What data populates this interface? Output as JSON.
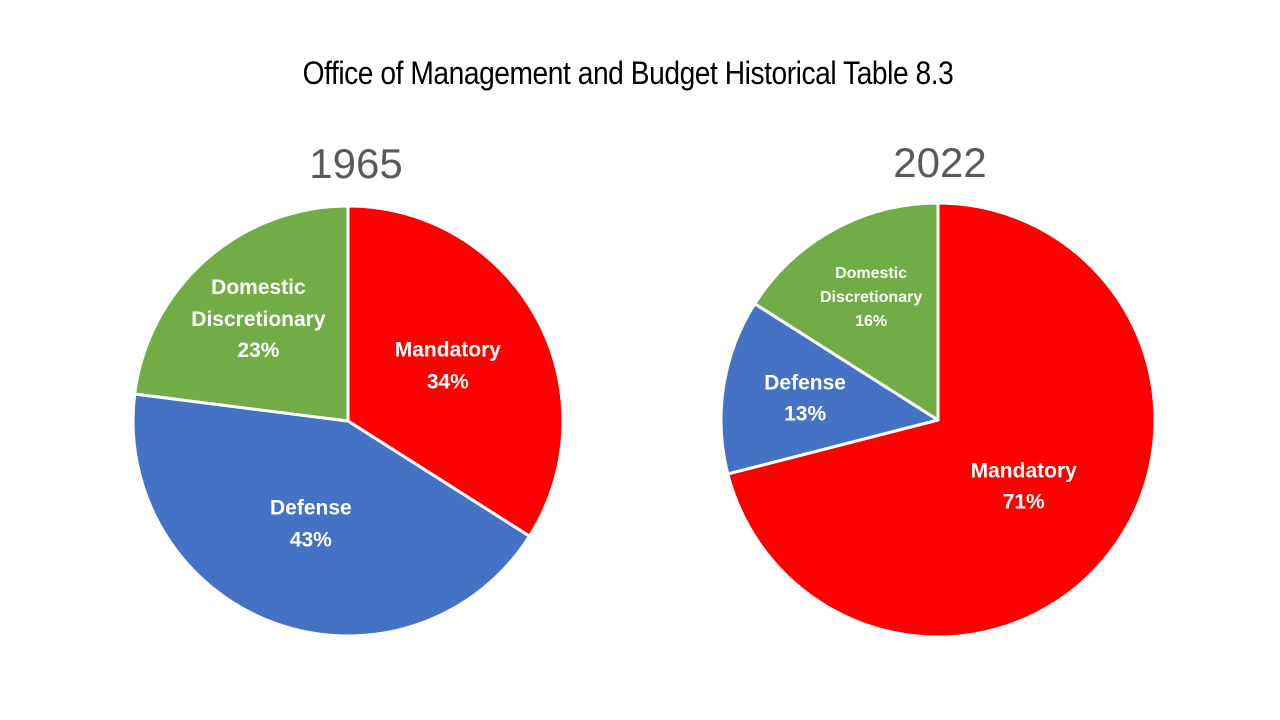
{
  "title": "Office of Management and Budget Historical Table 8.3",
  "colors": {
    "mandatory": "#FF0000",
    "defense": "#4472C4",
    "domestic_discretionary": "#70AD47",
    "year_label": "#595959",
    "title_text": "#000000",
    "slice_border": "#FFFFFF",
    "background": "#FFFFFF"
  },
  "chart_data": [
    {
      "type": "pie",
      "title": "1965",
      "unit": "%",
      "start_angle_deg": 0,
      "direction": "clockwise",
      "legend": "none",
      "slices": [
        {
          "name": "Mandatory",
          "value": 34,
          "color": "#FF0000",
          "label_lines": [
            "Mandatory",
            "34%"
          ],
          "label_r_frac": 0.53,
          "label_font_px": 21
        },
        {
          "name": "Defense",
          "value": 43,
          "color": "#4472C4",
          "label_lines": [
            "Defense",
            "43%"
          ],
          "label_r_frac": 0.51,
          "label_font_px": 21
        },
        {
          "name": "Domestic Discretionary",
          "value": 23,
          "color": "#70AD47",
          "label_lines": [
            "Domestic",
            "Discretionary",
            "23%"
          ],
          "label_r_frac": 0.63,
          "label_font_px": 21
        }
      ]
    },
    {
      "type": "pie",
      "title": "2022",
      "unit": "%",
      "start_angle_deg": 0,
      "direction": "clockwise",
      "legend": "none",
      "slices": [
        {
          "name": "Mandatory",
          "value": 71,
          "color": "#FF0000",
          "label_lines": [
            "Mandatory",
            "71%"
          ],
          "label_r_frac": 0.5,
          "label_font_px": 21
        },
        {
          "name": "Defense",
          "value": 13,
          "color": "#4472C4",
          "label_lines": [
            "Defense",
            "13%"
          ],
          "label_r_frac": 0.62,
          "label_font_px": 21
        },
        {
          "name": "Domestic Discretionary",
          "value": 16,
          "color": "#70AD47",
          "label_lines": [
            "Domestic",
            "Discretionary",
            "16%"
          ],
          "label_r_frac": 0.64,
          "label_font_px": 16
        }
      ]
    }
  ]
}
